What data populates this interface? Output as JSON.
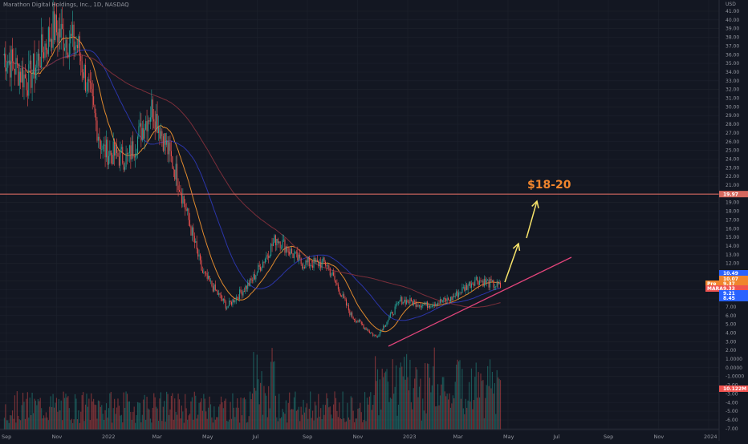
{
  "header": {
    "title": "Marathon Digital Holdings, Inc., 1D, NASDAQ"
  },
  "colors": {
    "background": "#131722",
    "grid": "#1e222d",
    "up": "#26a69a",
    "down": "#ef5350",
    "ma_fast": "#e08a2e",
    "ma_mid": "#2b35a8",
    "ma_slow": "#7a2e3a",
    "resistance": "#d6695f",
    "trendline": "#e0447a",
    "arrow": "#f7e36a",
    "annotation": "#f0852d"
  },
  "chart_data": {
    "type": "candlestick",
    "title": "Marathon Digital Holdings, Inc., 1D, NASDAQ",
    "currency": "USD",
    "price_axis": {
      "ticks": [
        "41.00",
        "40.00",
        "39.00",
        "38.00",
        "37.00",
        "36.00",
        "35.00",
        "34.00",
        "33.00",
        "32.00",
        "31.00",
        "30.00",
        "29.00",
        "28.00",
        "27.00",
        "26.00",
        "25.00",
        "24.00",
        "23.00",
        "22.00",
        "21.00",
        "20.00",
        "19.00",
        "18.00",
        "17.00",
        "16.00",
        "15.00",
        "14.00",
        "13.00",
        "12.00",
        "11.00",
        "10.00",
        "9.00",
        "8.00",
        "7.00",
        "6.00",
        "5.00",
        "4.00",
        "3.00",
        "2.00",
        "1.0000",
        "0.0000",
        "-1.0000",
        "-2.00",
        "-3.00",
        "-4.00",
        "-5.00",
        "-6.00",
        "-7.00"
      ]
    },
    "time_axis": {
      "ticks": [
        "Sep",
        "Nov",
        "2022",
        "Mar",
        "May",
        "Jul",
        "Sep",
        "Nov",
        "2023",
        "Mar",
        "May",
        "Jul",
        "Sep",
        "Nov",
        "2024"
      ]
    },
    "price_series_approx": [
      {
        "date": "2021-09",
        "close": 36
      },
      {
        "date": "2021-10",
        "close": 33
      },
      {
        "date": "2021-11",
        "close": 39
      },
      {
        "date": "2021-12",
        "close": 37
      },
      {
        "date": "2022-01",
        "close": 25
      },
      {
        "date": "2022-02",
        "close": 24
      },
      {
        "date": "2022-03",
        "close": 30
      },
      {
        "date": "2022-04",
        "close": 22
      },
      {
        "date": "2022-05",
        "close": 11
      },
      {
        "date": "2022-06",
        "close": 7
      },
      {
        "date": "2022-07",
        "close": 10
      },
      {
        "date": "2022-08",
        "close": 15
      },
      {
        "date": "2022-09",
        "close": 12
      },
      {
        "date": "2022-10",
        "close": 12
      },
      {
        "date": "2022-11",
        "close": 6
      },
      {
        "date": "2022-12",
        "close": 3.5
      },
      {
        "date": "2023-01",
        "close": 7.8
      },
      {
        "date": "2023-02",
        "close": 7.2
      },
      {
        "date": "2023-03",
        "close": 7.9
      },
      {
        "date": "2023-04",
        "close": 10.2
      },
      {
        "date": "2023-05",
        "close": 9.3
      }
    ],
    "horizontal_level": {
      "value": 19.97,
      "label": "19.97"
    },
    "trendline": {
      "from": {
        "date": "2022-12",
        "price": 3.0
      },
      "to": {
        "date": "2023-06",
        "price": 13.0
      }
    },
    "annotations": [
      {
        "text": "$18-20"
      }
    ],
    "price_tags": [
      {
        "label": "",
        "value": "10.49",
        "color": "#2962ff"
      },
      {
        "label": "",
        "value": "10.07",
        "color": "#f0852d"
      },
      {
        "label": "Pre",
        "value": "9.37",
        "color": "#f0852d"
      },
      {
        "label": "MARA",
        "value": "9.33",
        "color": "#ef5350"
      },
      {
        "label": "",
        "value": "9.21",
        "color": "#2962ff"
      },
      {
        "label": "",
        "value": "8.45",
        "color": "#2962ff"
      },
      {
        "label": "",
        "value": "10.122M",
        "color": "#ef5350"
      }
    ],
    "grid": true,
    "legend": "none"
  }
}
